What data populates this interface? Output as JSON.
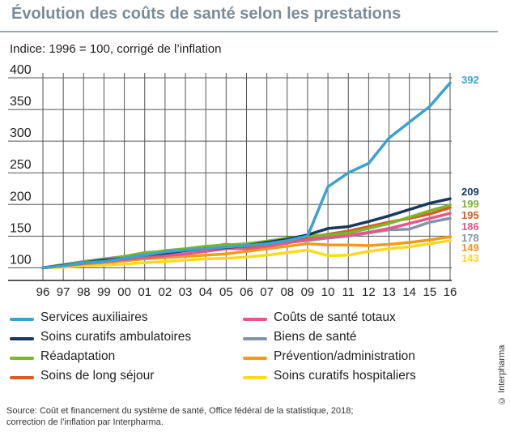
{
  "header": {
    "title": "Évolution des coûts de santé selon les prestations",
    "subtitle": "Indice: 1996 = 100, corrigé de l’inflation"
  },
  "chart_data": {
    "type": "line",
    "x": [
      "96",
      "97",
      "98",
      "99",
      "00",
      "01",
      "02",
      "03",
      "04",
      "05",
      "06",
      "07",
      "08",
      "09",
      "10",
      "11",
      "12",
      "13",
      "14",
      "15",
      "16"
    ],
    "yticks": [
      100,
      150,
      200,
      250,
      300,
      350,
      400
    ],
    "ylim": [
      80,
      400
    ],
    "grid": true,
    "legend_placement": "bottom",
    "series": [
      {
        "name": "Services auxiliaires",
        "color": "#3aa3d0",
        "end_label": "392",
        "values": [
          100,
          103,
          108,
          110,
          115,
          120,
          125,
          128,
          130,
          133,
          135,
          138,
          143,
          150,
          228,
          250,
          265,
          305,
          330,
          355,
          392
        ]
      },
      {
        "name": "Soins curatifs ambulatoires",
        "color": "#16375e",
        "end_label": "209",
        "values": [
          100,
          104,
          108,
          112,
          115,
          120,
          123,
          127,
          130,
          132,
          135,
          140,
          145,
          152,
          162,
          165,
          173,
          182,
          192,
          202,
          209
        ]
      },
      {
        "name": "Réadaptation",
        "color": "#7ab62e",
        "end_label": "199",
        "values": [
          100,
          105,
          109,
          113,
          118,
          123,
          127,
          130,
          134,
          136,
          138,
          142,
          147,
          150,
          152,
          155,
          162,
          170,
          180,
          190,
          199
        ]
      },
      {
        "name": "Soins de long séjour",
        "color": "#dd5a1e",
        "end_label": "195",
        "values": [
          100,
          104,
          108,
          112,
          116,
          120,
          124,
          128,
          133,
          137,
          133,
          138,
          143,
          148,
          153,
          158,
          165,
          172,
          178,
          185,
          195
        ]
      },
      {
        "name": "Coûts de santé totaux",
        "color": "#e5558f",
        "end_label": "186",
        "values": [
          100,
          103,
          107,
          110,
          113,
          116,
          119,
          122,
          126,
          130,
          130,
          134,
          139,
          145,
          148,
          151,
          156,
          162,
          170,
          178,
          186
        ]
      },
      {
        "name": "Biens de santé",
        "color": "#8096a8",
        "end_label": "178",
        "values": [
          100,
          105,
          110,
          114,
          118,
          124,
          126,
          128,
          130,
          132,
          132,
          136,
          140,
          143,
          147,
          150,
          155,
          160,
          161,
          172,
          178
        ]
      },
      {
        "name": "Prévention/administration",
        "color": "#f39a17",
        "end_label": "149",
        "values": [
          100,
          103,
          106,
          108,
          111,
          114,
          116,
          118,
          120,
          122,
          126,
          130,
          134,
          138,
          136,
          136,
          135,
          137,
          140,
          144,
          149
        ]
      },
      {
        "name": "Soins curatifs hospitaliers",
        "color": "#ffd91f",
        "end_label": "143",
        "values": [
          100,
          101,
          103,
          104,
          106,
          108,
          110,
          112,
          114,
          115,
          117,
          120,
          124,
          128,
          119,
          120,
          126,
          130,
          133,
          138,
          143
        ]
      }
    ]
  },
  "footer": {
    "source_line1": "Source: Coût et financement du système de santé, Office fédéral de la statistique, 2018;",
    "source_line2": "correction de l’inflation par Interpharma.",
    "copyright": "© Interpharma"
  }
}
